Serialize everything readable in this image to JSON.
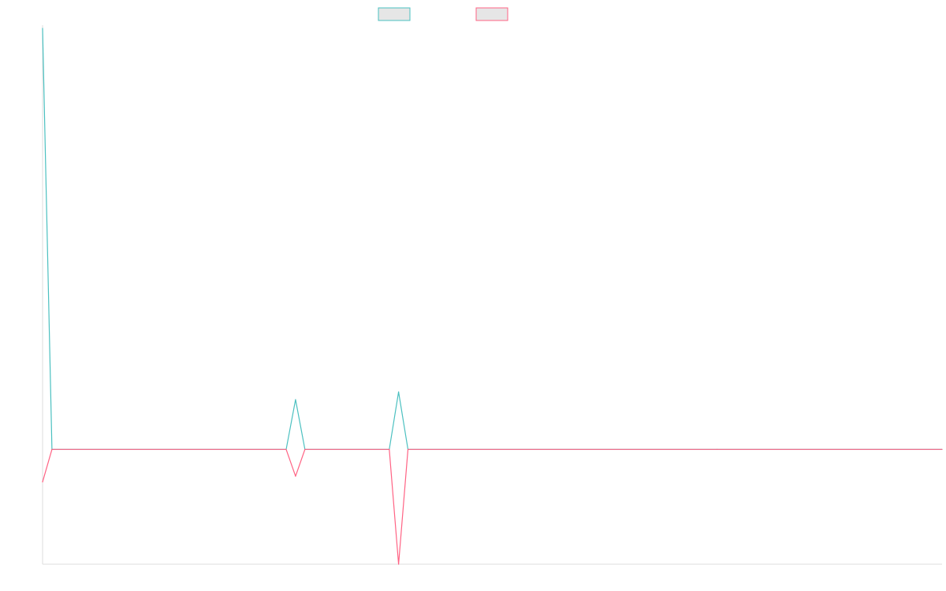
{
  "chart_data": {
    "type": "line",
    "title": "",
    "xlabel": "",
    "ylabel": "",
    "x": [
      0,
      1,
      26,
      27,
      28,
      37,
      38,
      39,
      72,
      96
    ],
    "series": [
      {
        "values": [
          110,
          0,
          0,
          13,
          0,
          0,
          15,
          0,
          0,
          0
        ],
        "color": "#4bc0c0"
      },
      {
        "values": [
          -8.5,
          0,
          0,
          -7,
          0,
          0,
          -30,
          0,
          0,
          0
        ],
        "color": "#ff6384"
      }
    ],
    "xlim": [
      0,
      96
    ],
    "ylim": [
      -30,
      110
    ],
    "grid": false,
    "legend": {
      "placement": "top-center"
    }
  }
}
